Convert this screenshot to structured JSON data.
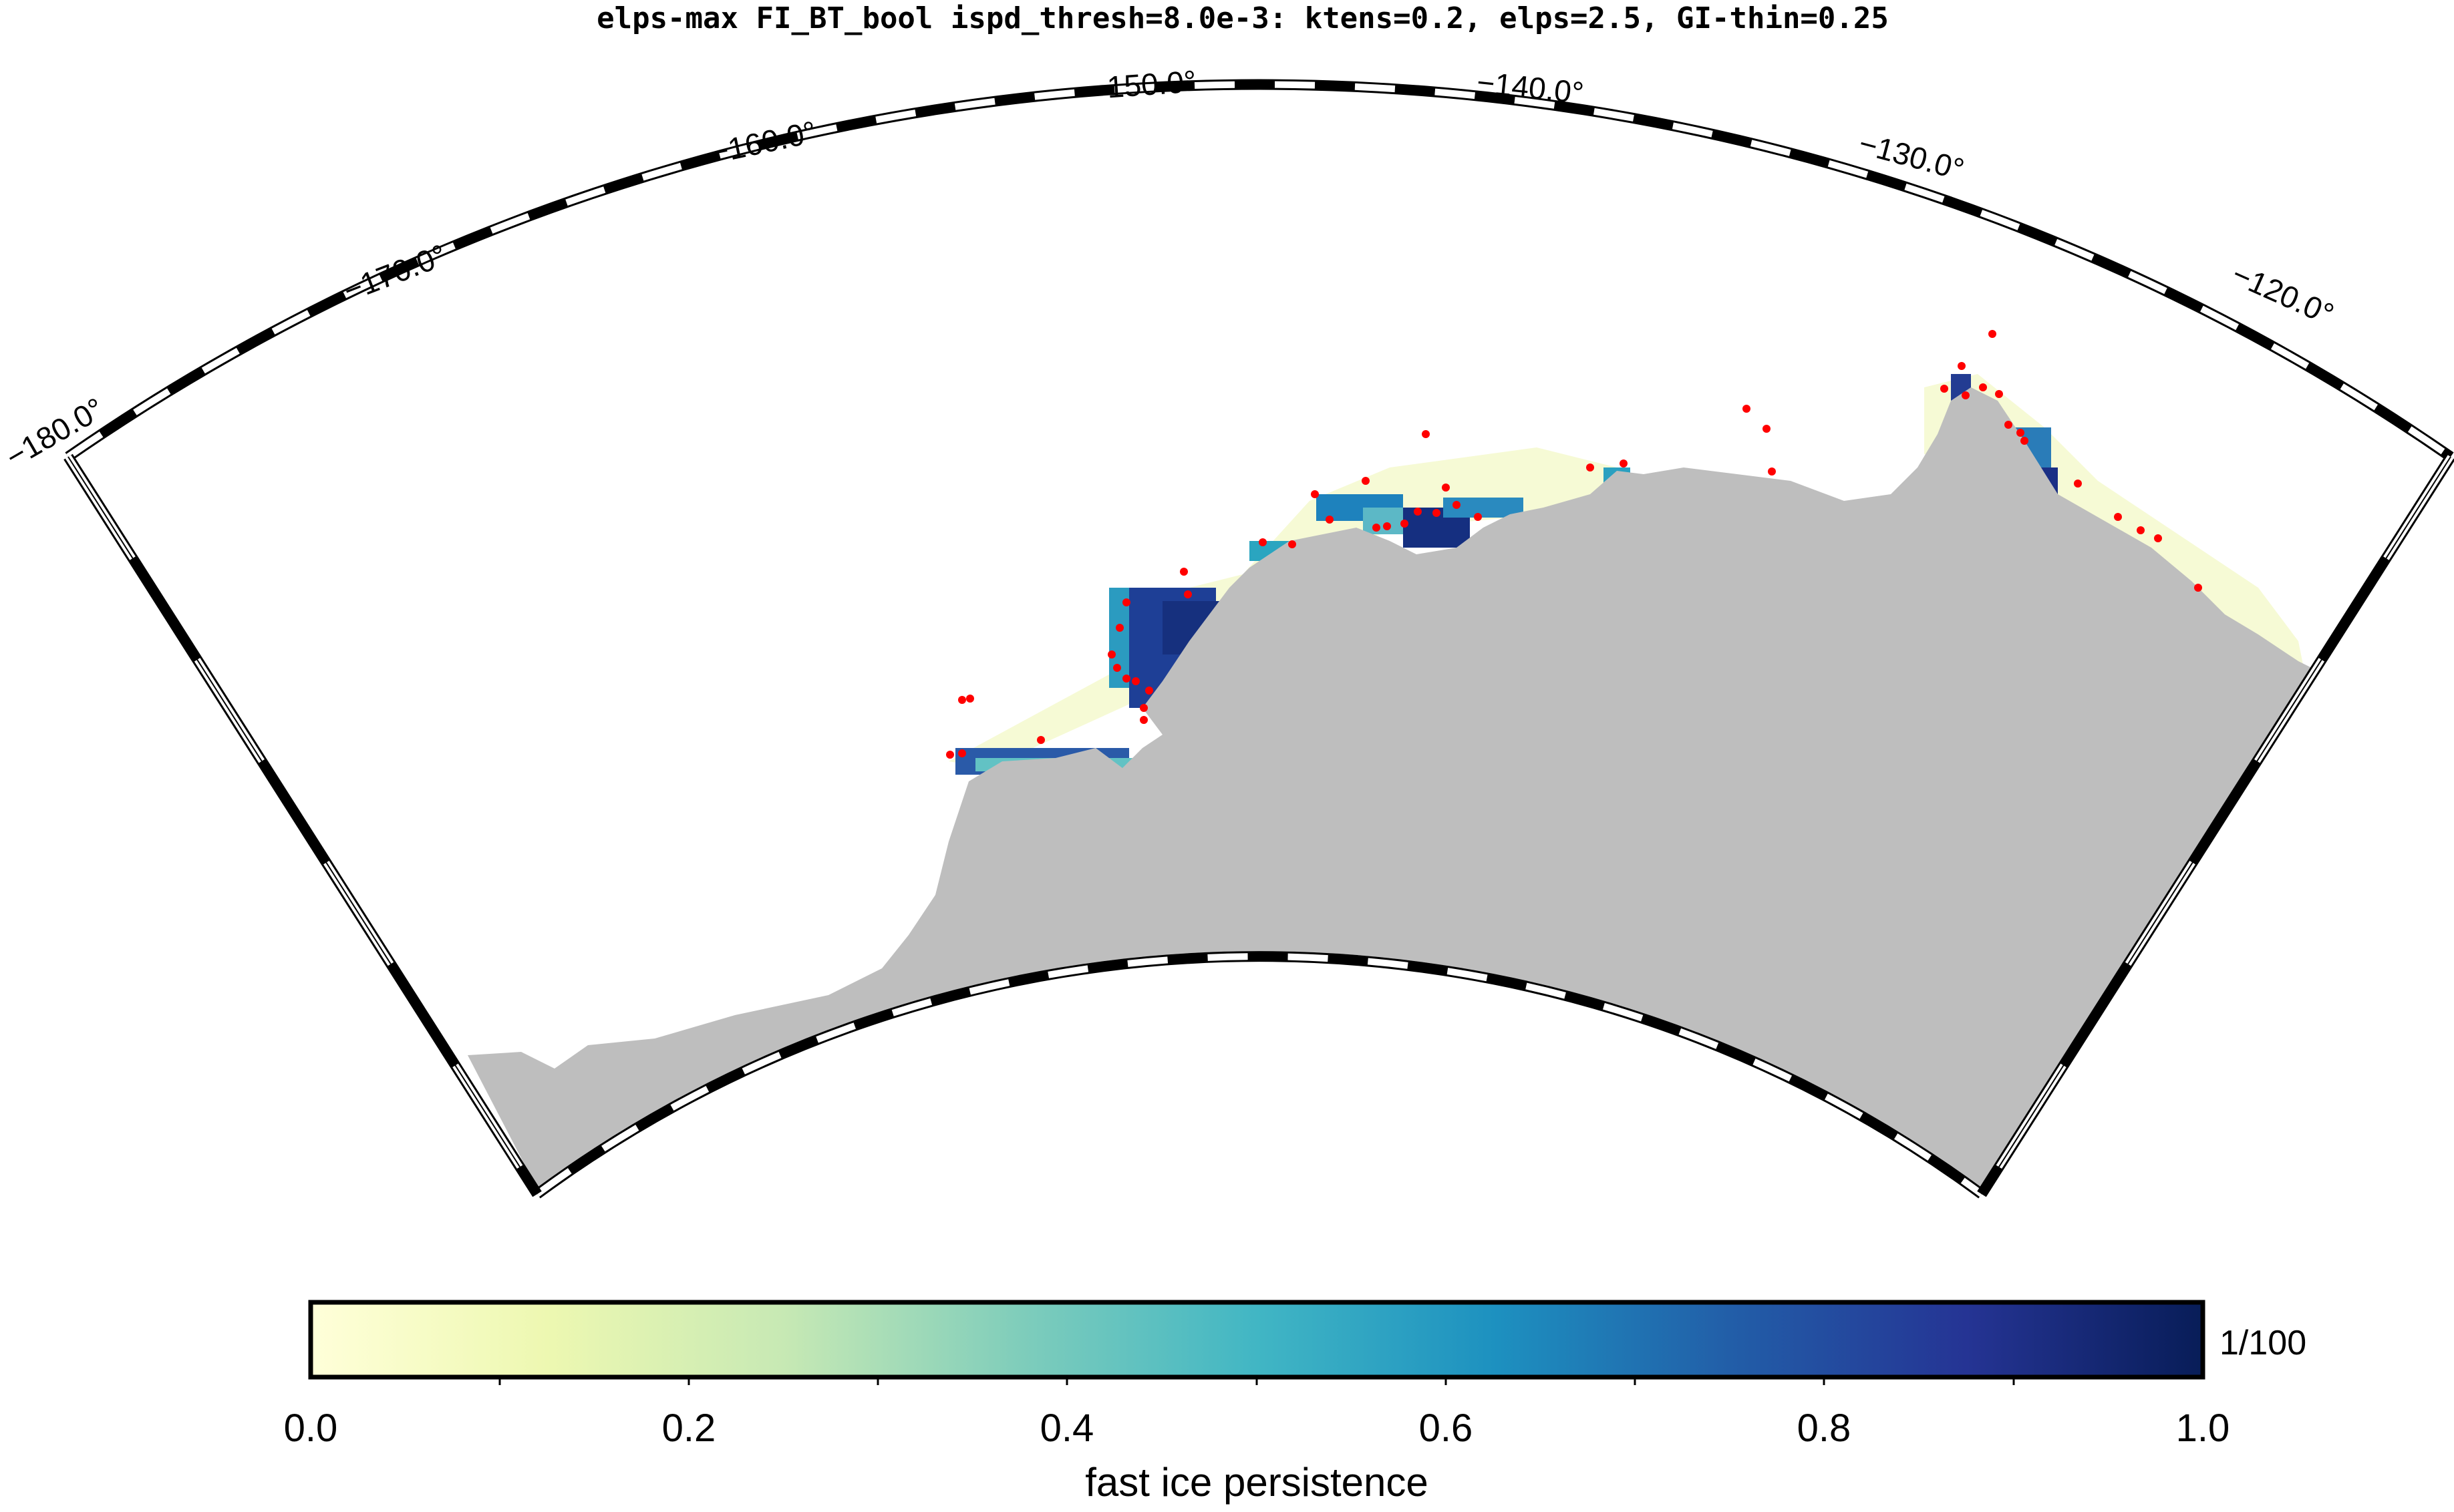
{
  "title": "elps-max FI_BT_bool ispd_thresh=8.0e-3: ktens=0.2, elps=2.5, GI-thin=0.25",
  "longitude_labels": [
    "−180.0°",
    "−170.0°",
    "−160.0°",
    "−150.0°",
    "−140.0°",
    "−130.0°",
    "−120.0°"
  ],
  "map": {
    "projection": "conic sector",
    "longitude_range": [
      -180,
      -115
    ],
    "land_color": "#bebebe",
    "ocean_color": "#ffffff",
    "grounded_iceberg_marker_color": "#ff0000"
  },
  "colorbar": {
    "label": "fast ice persistence",
    "scale_annotation": "1/100",
    "tick_labels": [
      "0.0",
      "0.2",
      "0.4",
      "0.6",
      "0.8",
      "1.0"
    ],
    "range": [
      0.0,
      1.0
    ],
    "colormap": "YlGnBu",
    "stops": [
      "#ffffd9",
      "#edf8b1",
      "#c7e9b4",
      "#7fcdbb",
      "#41b6c4",
      "#1d91c0",
      "#225ea8",
      "#253494",
      "#081d58"
    ]
  }
}
